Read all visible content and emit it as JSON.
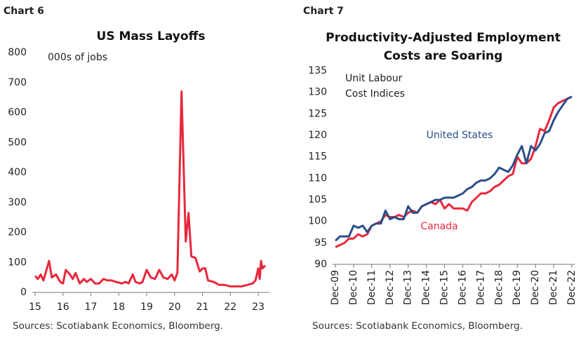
{
  "chart_data": [
    {
      "type": "line",
      "label": "Chart 6",
      "title": "US Mass Layoffs",
      "annotation": "000s of jobs",
      "source": "Sources: Scotiabank Economics, Bloomberg.",
      "x": [
        15.0,
        15.1,
        15.2,
        15.3,
        15.5,
        15.6,
        15.75,
        15.9,
        16.0,
        16.1,
        16.25,
        16.35,
        16.45,
        16.6,
        16.75,
        16.85,
        17.0,
        17.15,
        17.3,
        17.45,
        17.6,
        17.75,
        17.9,
        18.1,
        18.25,
        18.35,
        18.5,
        18.6,
        18.75,
        18.85,
        19.0,
        19.15,
        19.3,
        19.45,
        19.6,
        19.75,
        19.9,
        20.0,
        20.1,
        20.25,
        20.4,
        20.5,
        20.6,
        20.75,
        20.9,
        21.0,
        21.1,
        21.2,
        21.4,
        21.6,
        21.8,
        22.0,
        22.2,
        22.4,
        22.6,
        22.8,
        22.9,
        23.0,
        23.05,
        23.1,
        23.15,
        23.25
      ],
      "series": [
        {
          "name": "US Mass Layoffs",
          "color": "#e8283c",
          "values": [
            55,
            45,
            60,
            40,
            105,
            50,
            60,
            35,
            30,
            75,
            60,
            45,
            65,
            30,
            45,
            35,
            45,
            30,
            30,
            45,
            40,
            40,
            35,
            30,
            35,
            30,
            60,
            35,
            30,
            35,
            75,
            50,
            45,
            75,
            50,
            45,
            60,
            40,
            65,
            670,
            170,
            265,
            120,
            115,
            70,
            80,
            80,
            40,
            35,
            25,
            25,
            20,
            20,
            20,
            25,
            30,
            40,
            80,
            45,
            105,
            80,
            90
          ]
        }
      ],
      "xlim": [
        15,
        23.3
      ],
      "xticks": [
        15,
        16,
        17,
        18,
        19,
        20,
        21,
        22,
        23
      ],
      "ylim": [
        0,
        800
      ],
      "yticks": [
        0,
        100,
        200,
        300,
        400,
        500,
        600,
        700,
        800
      ]
    },
    {
      "type": "line",
      "label": "Chart 7",
      "title": "Productivity-Adjusted Employment Costs are Soaring",
      "annotation": [
        "Unit Labour",
        "Cost Indices"
      ],
      "source": "Sources: Scotiabank Economics, Bloomberg.",
      "categories": [
        "Dec-09",
        null,
        null,
        null,
        "Dec-10",
        null,
        null,
        null,
        "Dec-11",
        null,
        null,
        null,
        "Dec-12",
        null,
        null,
        null,
        "Dec-13",
        null,
        null,
        null,
        "Dec-14",
        null,
        null,
        null,
        "Dec-15",
        null,
        null,
        null,
        "Dec-16",
        null,
        null,
        null,
        "Dec-17",
        null,
        null,
        null,
        "Dec-18",
        null,
        null,
        null,
        "Dec-19",
        null,
        null,
        null,
        "Dec-20",
        null,
        null,
        null,
        "Dec-21",
        null,
        null,
        null,
        "Dec-22"
      ],
      "series": [
        {
          "name": "United States",
          "color": "#2a4f8a",
          "values": [
            95.5,
            96.5,
            96.5,
            96.5,
            99,
            98.5,
            99,
            97.5,
            99,
            99.5,
            99.5,
            102.5,
            100.5,
            101,
            100.5,
            100.5,
            103.5,
            102,
            102,
            103.5,
            104,
            104.5,
            105,
            105,
            105.5,
            105.5,
            105.5,
            106,
            106.5,
            107.5,
            108,
            109,
            109.5,
            109.5,
            110,
            111,
            112.5,
            112,
            111.5,
            113,
            115.5,
            117.5,
            113.5,
            117.5,
            116.5,
            118,
            120.5,
            121,
            123.5,
            125.5,
            127,
            128.5,
            129
          ]
        },
        {
          "name": "Canada",
          "color": "#e8283c",
          "values": [
            94,
            94.5,
            95,
            96,
            96,
            97,
            96.5,
            97,
            99,
            99.5,
            100,
            101.5,
            101,
            101,
            101.5,
            101,
            102,
            102.5,
            102,
            103.5,
            104,
            104.5,
            104,
            105,
            103,
            104,
            103,
            103,
            103,
            102.5,
            104.5,
            105.5,
            106.5,
            106.5,
            107,
            108,
            108.5,
            109.5,
            110.5,
            111,
            115,
            113.5,
            113.5,
            114.5,
            117.5,
            121.5,
            121,
            123.5,
            126.5,
            127.5,
            128,
            128.5,
            129
          ]
        }
      ],
      "ylim": [
        90,
        135
      ],
      "yticks": [
        90,
        95,
        100,
        105,
        110,
        115,
        120,
        125,
        130,
        135
      ]
    }
  ]
}
